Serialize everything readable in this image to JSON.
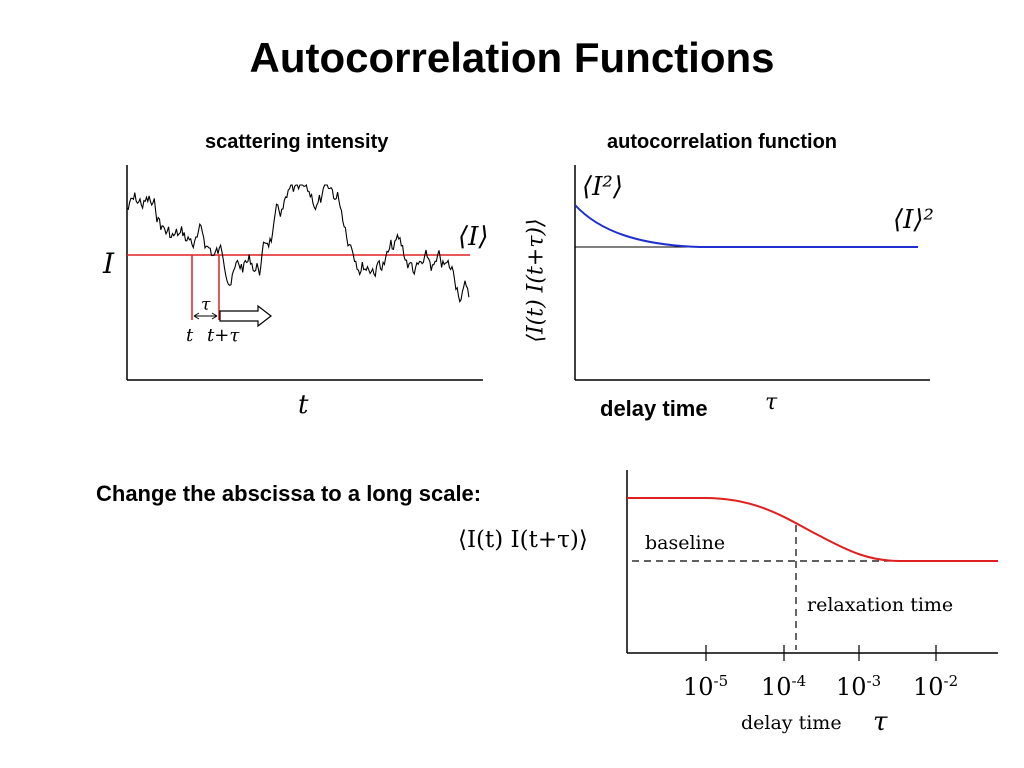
{
  "slide": {
    "title": "Autocorrelation Functions",
    "note": "Change the abscissa to a long scale:"
  },
  "panel_left": {
    "title": "scattering intensity",
    "y_label": "I",
    "x_label": "t",
    "mean_label": "⟨I⟩",
    "tau_label": "τ",
    "t_label": "t",
    "t_plus_tau_label": "t+τ",
    "colors": {
      "signal": "#000000",
      "mean_line": "#e02020"
    }
  },
  "panel_right": {
    "title": "autocorrelation function",
    "y_label": "⟨I(t) I(t+τ)⟩",
    "x_label_bold": "delay time",
    "x_label_tau": "τ",
    "top_value_label": "⟨I²⟩",
    "baseline_value_label": "⟨I⟩²",
    "colors": {
      "curve": "#1f2fd0",
      "baseline": "#000000"
    }
  },
  "panel_bottom": {
    "y_label": "⟨I(t) I(t+τ)⟩",
    "baseline_label": "baseline",
    "relaxation_label": "relaxation time",
    "x_label": "delay time",
    "x_label_tau": "τ",
    "ticks": [
      {
        "base": "10",
        "exp": "-5"
      },
      {
        "base": "10",
        "exp": "-4"
      },
      {
        "base": "10",
        "exp": "-3"
      },
      {
        "base": "10",
        "exp": "-2"
      }
    ],
    "colors": {
      "curve": "#e02020",
      "dashed": "#000000"
    }
  },
  "chart_data": [
    {
      "type": "line",
      "title": "scattering intensity",
      "xlabel": "t",
      "ylabel": "I",
      "series": [
        {
          "name": "⟨I⟩",
          "values": "constant mean level"
        }
      ],
      "annotations": [
        "τ",
        "t",
        "t+τ"
      ]
    },
    {
      "type": "line",
      "title": "autocorrelation function",
      "xlabel": "delay time τ",
      "ylabel": "⟨I(t) I(t+τ)⟩",
      "annotations": [
        "⟨I²⟩",
        "⟨I⟩²"
      ]
    },
    {
      "type": "line",
      "xlabel": "delay time τ",
      "ylabel": "⟨I(t) I(t+τ)⟩",
      "x_scale": "log",
      "x_ticks": [
        "10^-5",
        "10^-4",
        "10^-3",
        "10^-2"
      ],
      "relaxation_time_x": 0.00015,
      "annotations": [
        "baseline",
        "relaxation time"
      ]
    }
  ]
}
